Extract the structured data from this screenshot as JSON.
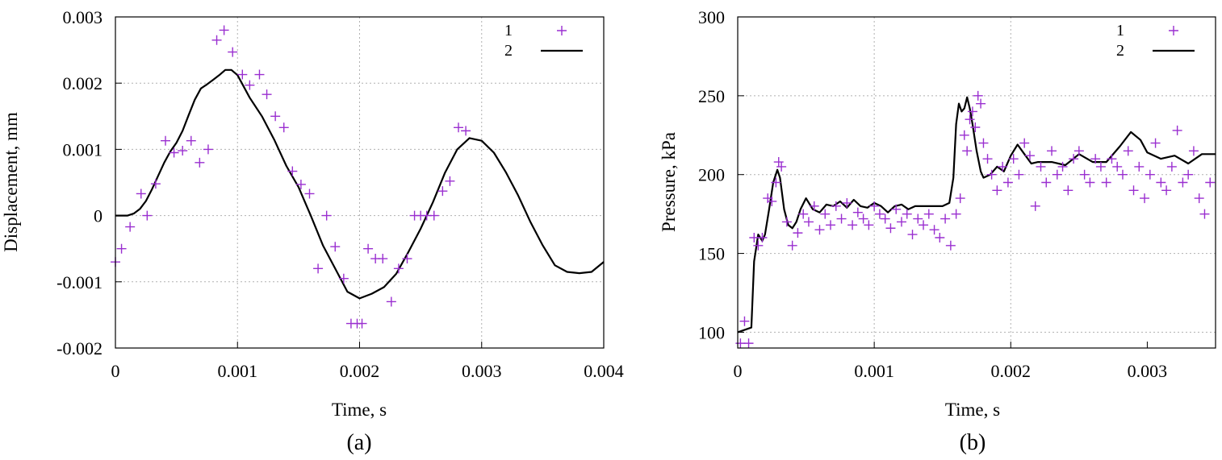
{
  "colors": {
    "experiment": "#9a2fd0",
    "model": "#000000",
    "grid": "#b0b0b0",
    "frame": "#000000"
  },
  "chart_data": [
    {
      "type": "scatter+line",
      "caption": "(a)",
      "xlabel": "Time, s",
      "ylabel": "Displacement, mm",
      "xlim": [
        0,
        0.004
      ],
      "ylim": [
        -0.002,
        0.003
      ],
      "xticks": [
        0,
        0.001,
        0.002,
        0.003,
        0.004
      ],
      "xtick_labels": [
        "0",
        "0.001",
        "0.002",
        "0.003",
        "0.004"
      ],
      "yticks": [
        -0.002,
        -0.001,
        0,
        0.001,
        0.002,
        0.003
      ],
      "ytick_labels": [
        "-0.002",
        "-0.001",
        "0",
        "0.001",
        "0.002",
        "0.003"
      ],
      "grid": true,
      "legend_position": "top-right",
      "series": [
        {
          "name": "1",
          "style": "markers",
          "marker": "+",
          "x": [
            0.0,
            5e-05,
            0.00012,
            0.00021,
            0.00026,
            0.00033,
            0.00041,
            0.00048,
            0.00055,
            0.00062,
            0.00069,
            0.00076,
            0.00083,
            0.00089,
            0.00096,
            0.00104,
            0.0011,
            0.00118,
            0.00124,
            0.00131,
            0.00138,
            0.00145,
            0.00152,
            0.00159,
            0.00166,
            0.00173,
            0.0018,
            0.00187,
            0.00193,
            0.00198,
            0.00202,
            0.00207,
            0.00213,
            0.00219,
            0.00226,
            0.00232,
            0.00239,
            0.00245,
            0.0025,
            0.00255,
            0.00261,
            0.00268,
            0.00274,
            0.00281,
            0.00287
          ],
          "y": [
            -0.0007,
            -0.0005,
            -0.00017,
            0.00033,
            0.0,
            0.00048,
            0.00113,
            0.00095,
            0.00098,
            0.00113,
            0.0008,
            0.001,
            0.00265,
            0.0028,
            0.00247,
            0.00213,
            0.00197,
            0.00213,
            0.00183,
            0.0015,
            0.00133,
            0.00067,
            0.00047,
            0.00033,
            -0.0008,
            0.0,
            -0.00047,
            -0.00095,
            -0.00163,
            -0.00163,
            -0.00163,
            -0.0005,
            -0.00065,
            -0.00065,
            -0.0013,
            -0.0008,
            -0.00065,
            0.0,
            0.0,
            0.0,
            0.0,
            0.00037,
            0.00052,
            0.00133,
            0.00128
          ]
        },
        {
          "name": "2",
          "style": "line",
          "x": [
            0.0,
            0.0001,
            0.00015,
            0.0002,
            0.00025,
            0.0003,
            0.00035,
            0.0004,
            0.00045,
            0.0005,
            0.00055,
            0.0006,
            0.00065,
            0.0007,
            0.00075,
            0.0008,
            0.00085,
            0.0009,
            0.00095,
            0.001,
            0.0011,
            0.0012,
            0.0013,
            0.0014,
            0.0015,
            0.0016,
            0.0017,
            0.0018,
            0.0019,
            0.002,
            0.0021,
            0.0022,
            0.0023,
            0.0024,
            0.0025,
            0.0026,
            0.0027,
            0.0028,
            0.0029,
            0.003,
            0.0031,
            0.0032,
            0.0033,
            0.0034,
            0.0035,
            0.0036,
            0.0037,
            0.0038,
            0.0039,
            0.004
          ],
          "y": [
            0.0,
            0.0,
            3e-05,
            0.0001,
            0.00022,
            0.0004,
            0.0006,
            0.0008,
            0.00097,
            0.0011,
            0.00128,
            0.00152,
            0.00175,
            0.00192,
            0.00198,
            0.00205,
            0.00212,
            0.0022,
            0.0022,
            0.00212,
            0.00178,
            0.0015,
            0.00115,
            0.00075,
            0.00043,
            0.0,
            -0.00045,
            -0.0008,
            -0.00115,
            -0.00125,
            -0.00118,
            -0.00108,
            -0.00088,
            -0.00055,
            -0.0002,
            0.0002,
            0.00065,
            0.001,
            0.00117,
            0.00113,
            0.00095,
            0.00065,
            0.0003,
            -0.0001,
            -0.00045,
            -0.00075,
            -0.00085,
            -0.00087,
            -0.00085,
            -0.0007
          ]
        }
      ]
    },
    {
      "type": "scatter+line",
      "caption": "(b)",
      "xlabel": "Time, s",
      "ylabel": "Pressure, kPa",
      "xlim": [
        0,
        0.0035
      ],
      "ylim": [
        90,
        300
      ],
      "xticks": [
        0,
        0.001,
        0.002,
        0.003
      ],
      "xtick_labels": [
        "0",
        "0.001",
        "0.002",
        "0.003"
      ],
      "yticks": [
        100,
        150,
        200,
        250,
        300
      ],
      "ytick_labels": [
        "100",
        "150",
        "200",
        "250",
        "300"
      ],
      "grid": true,
      "legend_position": "top-right",
      "series": [
        {
          "name": "1",
          "style": "markers",
          "marker": "+",
          "x": [
            2e-05,
            5e-05,
            8e-05,
            0.00012,
            0.00015,
            0.00018,
            0.00022,
            0.00025,
            0.00028,
            0.0003,
            0.00032,
            0.00036,
            0.0004,
            0.00044,
            0.00048,
            0.00052,
            0.00056,
            0.0006,
            0.00064,
            0.00068,
            0.00072,
            0.00076,
            0.0008,
            0.00084,
            0.00088,
            0.00092,
            0.00096,
            0.001,
            0.00104,
            0.00108,
            0.00112,
            0.00116,
            0.0012,
            0.00124,
            0.00128,
            0.00132,
            0.00136,
            0.0014,
            0.00144,
            0.00148,
            0.00152,
            0.00156,
            0.0016,
            0.00163,
            0.00166,
            0.00168,
            0.0017,
            0.00172,
            0.00174,
            0.00176,
            0.00178,
            0.0018,
            0.00183,
            0.00186,
            0.0019,
            0.00194,
            0.00198,
            0.00202,
            0.00206,
            0.0021,
            0.00214,
            0.00218,
            0.00222,
            0.00226,
            0.0023,
            0.00234,
            0.00238,
            0.00242,
            0.00246,
            0.0025,
            0.00254,
            0.00258,
            0.00262,
            0.00266,
            0.0027,
            0.00274,
            0.00278,
            0.00282,
            0.00286,
            0.0029,
            0.00294,
            0.00298,
            0.00302,
            0.00306,
            0.0031,
            0.00314,
            0.00318,
            0.00322,
            0.00326,
            0.0033,
            0.00334,
            0.00338,
            0.00342,
            0.00346
          ],
          "y": [
            93,
            107,
            93,
            160,
            155,
            160,
            185,
            183,
            195,
            208,
            205,
            170,
            155,
            163,
            175,
            170,
            180,
            165,
            175,
            168,
            180,
            172,
            182,
            168,
            176,
            172,
            168,
            180,
            175,
            172,
            166,
            178,
            170,
            175,
            162,
            172,
            168,
            175,
            165,
            160,
            172,
            155,
            175,
            185,
            225,
            215,
            235,
            240,
            230,
            250,
            245,
            220,
            210,
            200,
            190,
            205,
            195,
            210,
            200,
            220,
            212,
            180,
            205,
            195,
            215,
            200,
            205,
            190,
            210,
            215,
            200,
            195,
            210,
            205,
            195,
            210,
            205,
            200,
            215,
            190,
            205,
            185,
            200,
            220,
            195,
            190,
            205,
            228,
            195,
            200,
            215,
            185,
            175,
            195
          ]
        },
        {
          "name": "2",
          "style": "line",
          "x": [
            0.0,
            0.0001,
            0.00012,
            0.00015,
            0.00018,
            0.0002,
            0.00023,
            0.00026,
            0.00029,
            0.00031,
            0.00034,
            0.00037,
            0.0004,
            0.00043,
            0.00046,
            0.0005,
            0.00055,
            0.0006,
            0.00065,
            0.0007,
            0.00075,
            0.0008,
            0.00085,
            0.0009,
            0.00095,
            0.001,
            0.00105,
            0.0011,
            0.00115,
            0.0012,
            0.00125,
            0.0013,
            0.0014,
            0.0015,
            0.00155,
            0.00158,
            0.0016,
            0.00162,
            0.00164,
            0.00166,
            0.00168,
            0.0017,
            0.00172,
            0.00175,
            0.00178,
            0.0018,
            0.00185,
            0.0019,
            0.00195,
            0.002,
            0.00205,
            0.0021,
            0.00215,
            0.0022,
            0.0023,
            0.0024,
            0.0025,
            0.0026,
            0.0027,
            0.0028,
            0.00288,
            0.00295,
            0.003,
            0.0031,
            0.0032,
            0.0033,
            0.0034,
            0.0035
          ],
          "y": [
            100,
            103,
            145,
            162,
            158,
            162,
            178,
            195,
            203,
            198,
            178,
            168,
            166,
            170,
            178,
            185,
            178,
            176,
            181,
            180,
            183,
            179,
            184,
            180,
            179,
            182,
            180,
            176,
            180,
            181,
            178,
            180,
            180,
            180,
            182,
            198,
            232,
            245,
            240,
            242,
            249,
            242,
            232,
            215,
            202,
            198,
            200,
            205,
            202,
            212,
            219,
            213,
            207,
            208,
            208,
            206,
            213,
            208,
            208,
            218,
            227,
            222,
            214,
            210,
            212,
            207,
            213,
            213
          ]
        }
      ]
    }
  ]
}
